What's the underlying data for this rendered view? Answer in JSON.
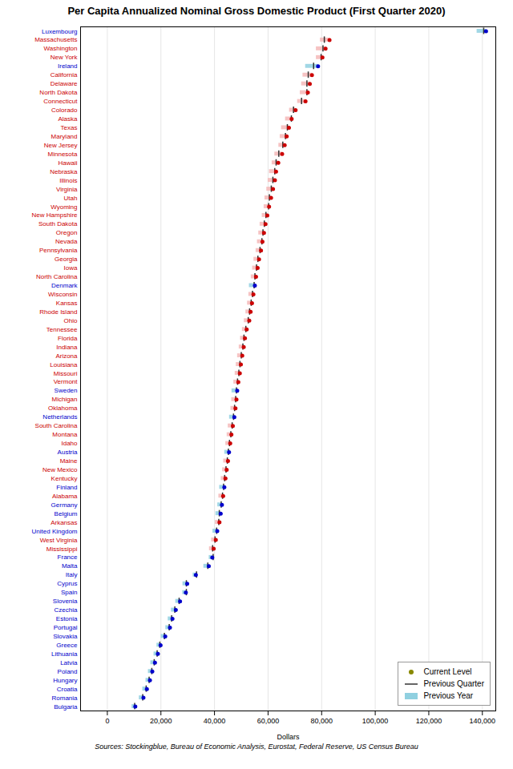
{
  "chart_data": {
    "type": "range",
    "title": "Per Capita Annualized Nominal Gross Domestic Product (First Quarter 2020)",
    "xlabel": "Dollars",
    "source": "Sources: Stockingblue, Bureau of Economic Analysis, Eurostat, Federal Reserve, US Census Bureau",
    "orientation": "horizontal",
    "grid": true,
    "legend": "lower right",
    "xlim": [
      -10000,
      145000
    ],
    "xticks": [
      0,
      {
        "value": 20000,
        "label": "20,000"
      },
      {
        "value": 40000,
        "label": "40,000"
      },
      {
        "value": 60000,
        "label": "60,000"
      },
      {
        "value": 80000,
        "label": "80,000"
      },
      {
        "value": 100000,
        "label": "100,000"
      },
      {
        "value": 120000,
        "label": "120,000"
      },
      {
        "value": 140000,
        "label": "140,000"
      }
    ],
    "categories": [
      "Luxembourg",
      "Massachusetts",
      "Washington",
      "New York",
      "Ireland",
      "California",
      "Delaware",
      "North Dakota",
      "Connecticut",
      "Colorado",
      "Alaska",
      "Texas",
      "Maryland",
      "New Jersey",
      "Minnesota",
      "Hawaii",
      "Nebraska",
      "Illinois",
      "Virginia",
      "Utah",
      "Wyoming",
      "New Hampshire",
      "South Dakota",
      "Oregon",
      "Nevada",
      "Pennsylvania",
      "Georgia",
      "Iowa",
      "North Carolina",
      "Denmark",
      "Wisconsin",
      "Kansas",
      "Rhode Island",
      "Ohio",
      "Tennessee",
      "Florida",
      "Indiana",
      "Arizona",
      "Louisiana",
      "Missouri",
      "Vermont",
      "Sweden",
      "Michigan",
      "Oklahoma",
      "Netherlands",
      "South Carolina",
      "Montana",
      "Idaho",
      "Austria",
      "Maine",
      "New Mexico",
      "Kentucky",
      "Finland",
      "Alabama",
      "Germany",
      "Belgium",
      "Arkansas",
      "United Kingdom",
      "West Virginia",
      "Mississippi",
      "France",
      "Malta",
      "Italy",
      "Cyprus",
      "Spain",
      "Slovenia",
      "Czechia",
      "Estonia",
      "Portugal",
      "Slovakia",
      "Greece",
      "Lithuania",
      "Latvia",
      "Poland",
      "Hungary",
      "Croatia",
      "Romania",
      "Bulgaria"
    ],
    "series": [
      {
        "name": "Current Level",
        "type": "scatter",
        "marker": "circle",
        "color": "#888800",
        "values": [
          141367,
          82929,
          81455,
          80294,
          78661,
          76367,
          75584,
          74851,
          73975,
          70273,
          68800,
          67783,
          66950,
          66196,
          65247,
          63808,
          62972,
          62557,
          61843,
          61117,
          60375,
          59720,
          59045,
          58475,
          57908,
          57370,
          56624,
          56105,
          55499,
          55076,
          54522,
          53995,
          53484,
          52979,
          52021,
          51378,
          50913,
          50364,
          49852,
          49455,
          48908,
          48481,
          48200,
          47835,
          47410,
          46852,
          46315,
          45873,
          45430,
          45036,
          44553,
          44090,
          43674,
          43230,
          42769,
          42316,
          41858,
          41032,
          40492,
          39699,
          39168,
          37876,
          33048,
          29808,
          29306,
          27147,
          25560,
          24304,
          23369,
          21617,
          19867,
          18873,
          17773,
          16783,
          15897,
          14755,
          13478,
          10432
        ],
        "colors": [
          "#0000cc",
          "#cc0000",
          "#cc0000",
          "#cc0000",
          "#0000cc",
          "#cc0000",
          "#cc0000",
          "#cc0000",
          "#cc0000",
          "#cc0000",
          "#cc0000",
          "#cc0000",
          "#cc0000",
          "#cc0000",
          "#cc0000",
          "#cc0000",
          "#cc0000",
          "#cc0000",
          "#cc0000",
          "#cc0000",
          "#cc0000",
          "#cc0000",
          "#cc0000",
          "#cc0000",
          "#cc0000",
          "#cc0000",
          "#cc0000",
          "#cc0000",
          "#cc0000",
          "#0000cc",
          "#cc0000",
          "#cc0000",
          "#cc0000",
          "#cc0000",
          "#cc0000",
          "#cc0000",
          "#cc0000",
          "#cc0000",
          "#cc0000",
          "#cc0000",
          "#cc0000",
          "#0000cc",
          "#cc0000",
          "#cc0000",
          "#0000cc",
          "#cc0000",
          "#cc0000",
          "#cc0000",
          "#0000cc",
          "#cc0000",
          "#cc0000",
          "#cc0000",
          "#0000cc",
          "#cc0000",
          "#0000cc",
          "#0000cc",
          "#cc0000",
          "#0000cc",
          "#cc0000",
          "#cc0000",
          "#0000cc",
          "#0000cc",
          "#0000cc",
          "#0000cc",
          "#0000cc",
          "#0000cc",
          "#0000cc",
          "#0000cc",
          "#0000cc",
          "#0000cc",
          "#0000cc",
          "#0000cc",
          "#0000cc",
          "#0000cc",
          "#0000cc",
          "#0000cc",
          "#0000cc",
          "#0000cc"
        ]
      },
      {
        "name": "Previous Quarter",
        "type": "tick",
        "color": "#333333",
        "values": [
          140500,
          81000,
          80500,
          79800,
          77000,
          75000,
          74500,
          74500,
          72500,
          69500,
          68700,
          67200,
          66500,
          65500,
          64000,
          63000,
          62500,
          61800,
          61200,
          60500,
          60200,
          59200,
          58600,
          58100,
          57700,
          57000,
          56200,
          55700,
          55100,
          54800,
          54200,
          53700,
          53100,
          52600,
          51700,
          51000,
          50600,
          50000,
          49500,
          49100,
          48600,
          48200,
          47900,
          47500,
          47100,
          46600,
          46100,
          45600,
          45200,
          44800,
          44300,
          43800,
          43400,
          43000,
          42500,
          41800,
          41600,
          40800,
          40200,
          39300,
          39500,
          37500,
          33300,
          29500,
          29500,
          26800,
          25200,
          24000,
          23100,
          21300,
          19600,
          18600,
          17500,
          16600,
          15600,
          14500,
          13200,
          10200
        ]
      },
      {
        "name": "Previous Year",
        "type": "bar",
        "color": "#90d0e0",
        "values": [
          138000,
          79500,
          78000,
          78000,
          74000,
          73000,
          72500,
          72000,
          71000,
          68000,
          66500,
          65000,
          64500,
          64000,
          62500,
          61500,
          60500,
          60000,
          59500,
          58800,
          58500,
          57800,
          57000,
          56500,
          56000,
          55500,
          54700,
          54200,
          53700,
          53000,
          52800,
          52300,
          51700,
          51100,
          50400,
          49700,
          49200,
          48600,
          48100,
          47700,
          47200,
          46500,
          46400,
          46100,
          45600,
          45100,
          44700,
          44200,
          43800,
          43400,
          43000,
          42500,
          41900,
          41600,
          41200,
          40500,
          40300,
          39400,
          38900,
          38100,
          38000,
          36000,
          32000,
          28200,
          28100,
          25500,
          23900,
          22700,
          21800,
          20100,
          18500,
          17400,
          16200,
          15300,
          14400,
          13200,
          11900,
          9200
        ],
        "colors": [
          "#90d0e0",
          "#f4b8b8",
          "#f4b8b8",
          "#f4b8b8",
          "#90d0e0",
          "#f4b8b8",
          "#f4b8b8",
          "#f4b8b8",
          "#f4b8b8",
          "#f4b8b8",
          "#f4b8b8",
          "#f4b8b8",
          "#f4b8b8",
          "#f4b8b8",
          "#f4b8b8",
          "#f4b8b8",
          "#f4b8b8",
          "#f4b8b8",
          "#f4b8b8",
          "#f4b8b8",
          "#f4b8b8",
          "#f4b8b8",
          "#f4b8b8",
          "#f4b8b8",
          "#f4b8b8",
          "#f4b8b8",
          "#f4b8b8",
          "#f4b8b8",
          "#f4b8b8",
          "#90d0e0",
          "#f4b8b8",
          "#f4b8b8",
          "#f4b8b8",
          "#f4b8b8",
          "#f4b8b8",
          "#f4b8b8",
          "#f4b8b8",
          "#f4b8b8",
          "#f4b8b8",
          "#f4b8b8",
          "#f4b8b8",
          "#90d0e0",
          "#f4b8b8",
          "#f4b8b8",
          "#90d0e0",
          "#f4b8b8",
          "#f4b8b8",
          "#f4b8b8",
          "#90d0e0",
          "#f4b8b8",
          "#f4b8b8",
          "#f4b8b8",
          "#90d0e0",
          "#f4b8b8",
          "#90d0e0",
          "#90d0e0",
          "#f4b8b8",
          "#90d0e0",
          "#f4b8b8",
          "#f4b8b8",
          "#90d0e0",
          "#90d0e0",
          "#90d0e0",
          "#90d0e0",
          "#90d0e0",
          "#90d0e0",
          "#90d0e0",
          "#90d0e0",
          "#90d0e0",
          "#90d0e0",
          "#90d0e0",
          "#90d0e0",
          "#90d0e0",
          "#90d0e0",
          "#90d0e0",
          "#90d0e0",
          "#90d0e0",
          "#90d0e0"
        ]
      }
    ]
  }
}
